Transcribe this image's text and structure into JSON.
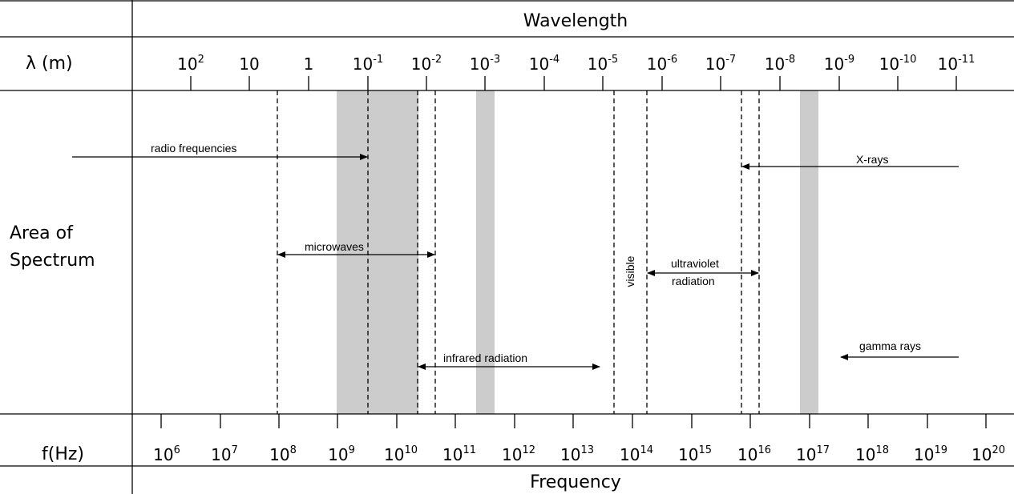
{
  "header": {
    "wavelength": "Wavelength",
    "frequency": "Frequency"
  },
  "rows": {
    "lambda": "λ (m)",
    "area_line1": "Area of",
    "area_line2": "Spectrum",
    "freq": "f(Hz)"
  },
  "wavelength_ticks": [
    {
      "base": "10",
      "exp": "2"
    },
    {
      "base": "10",
      "exp": ""
    },
    {
      "base": "1",
      "exp": ""
    },
    {
      "base": "10",
      "exp": "-1"
    },
    {
      "base": "10",
      "exp": "-2"
    },
    {
      "base": "10",
      "exp": "-3"
    },
    {
      "base": "10",
      "exp": "-4"
    },
    {
      "base": "10",
      "exp": "-5"
    },
    {
      "base": "10",
      "exp": "-6"
    },
    {
      "base": "10",
      "exp": "-7"
    },
    {
      "base": "10",
      "exp": "-8"
    },
    {
      "base": "10",
      "exp": "-9"
    },
    {
      "base": "10",
      "exp": "-10"
    },
    {
      "base": "10",
      "exp": "-11"
    }
  ],
  "frequency_ticks": [
    {
      "base": "10",
      "exp": "6"
    },
    {
      "base": "10",
      "exp": "7"
    },
    {
      "base": "10",
      "exp": "8"
    },
    {
      "base": "10",
      "exp": "9"
    },
    {
      "base": "10",
      "exp": "10"
    },
    {
      "base": "10",
      "exp": "11"
    },
    {
      "base": "10",
      "exp": "12"
    },
    {
      "base": "10",
      "exp": "13"
    },
    {
      "base": "10",
      "exp": "14"
    },
    {
      "base": "10",
      "exp": "15"
    },
    {
      "base": "10",
      "exp": "16"
    },
    {
      "base": "10",
      "exp": "17"
    },
    {
      "base": "10",
      "exp": "18"
    },
    {
      "base": "10",
      "exp": "19"
    },
    {
      "base": "10",
      "exp": "20"
    }
  ],
  "regions": {
    "radio": "radio frequencies",
    "microwaves": "microwaves",
    "infrared": "infrared radiation",
    "visible": "visible",
    "uv_line1": "ultraviolet",
    "uv_line2": "radiation",
    "xrays": "X-rays",
    "gamma": "gamma rays"
  },
  "colors": {
    "shade": "#cccccc",
    "line": "#000000"
  }
}
